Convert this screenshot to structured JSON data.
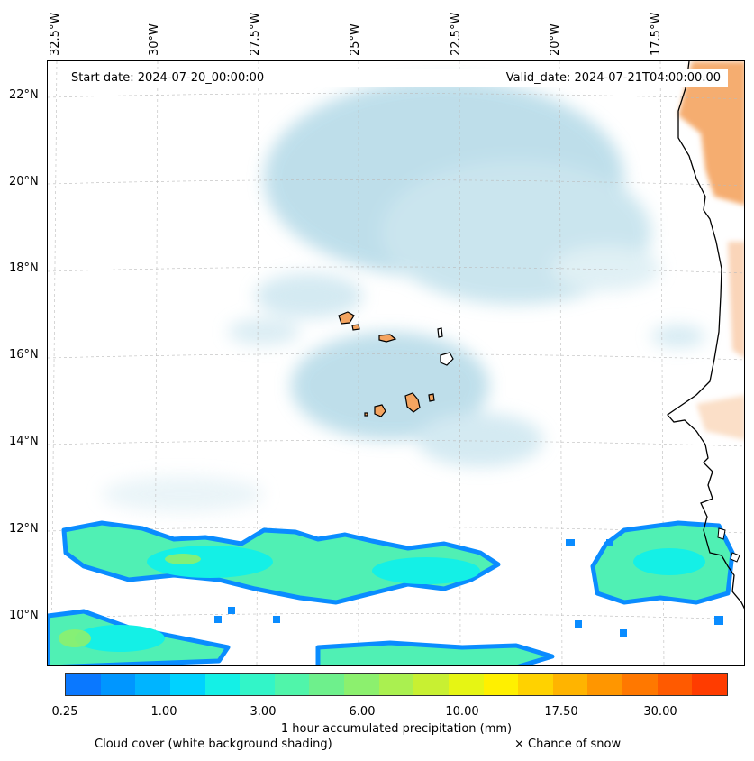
{
  "map": {
    "start_date": "Start date: 2024-07-20_00:00:00",
    "valid_date": "Valid_date: 2024-07-21T04:00:00.00",
    "lon_labels": [
      "32.5°W",
      "30°W",
      "27.5°W",
      "25°W",
      "22.5°W",
      "20°W",
      "17.5°W"
    ],
    "lat_labels": [
      "22°N",
      "20°N",
      "18°N",
      "16°N",
      "14°N",
      "12°N",
      "10°N"
    ],
    "colors": {
      "land": "#f4a460",
      "coast": "#000000",
      "cloud": "#a9d4e4",
      "gridline": "#bbbbbb"
    }
  },
  "colorbar": {
    "title": "1 hour accumulated precipitation (mm)",
    "ticks": [
      "0.25",
      "1.00",
      "3.00",
      "6.00",
      "10.00",
      "17.50",
      "30.00"
    ],
    "colors": [
      "#0a78ff",
      "#0096ff",
      "#00b4ff",
      "#00d2ff",
      "#14f0e6",
      "#32f5c8",
      "#50f5aa",
      "#6ef08c",
      "#8cf06e",
      "#aaf050",
      "#c8f032",
      "#e6f514",
      "#fff000",
      "#ffd200",
      "#ffb400",
      "#ff9600",
      "#ff7800",
      "#ff5a00",
      "#ff3c00"
    ]
  },
  "footer": {
    "cloud_note": "Cloud cover (white background shading)",
    "snow_note": "× Chance of snow"
  }
}
